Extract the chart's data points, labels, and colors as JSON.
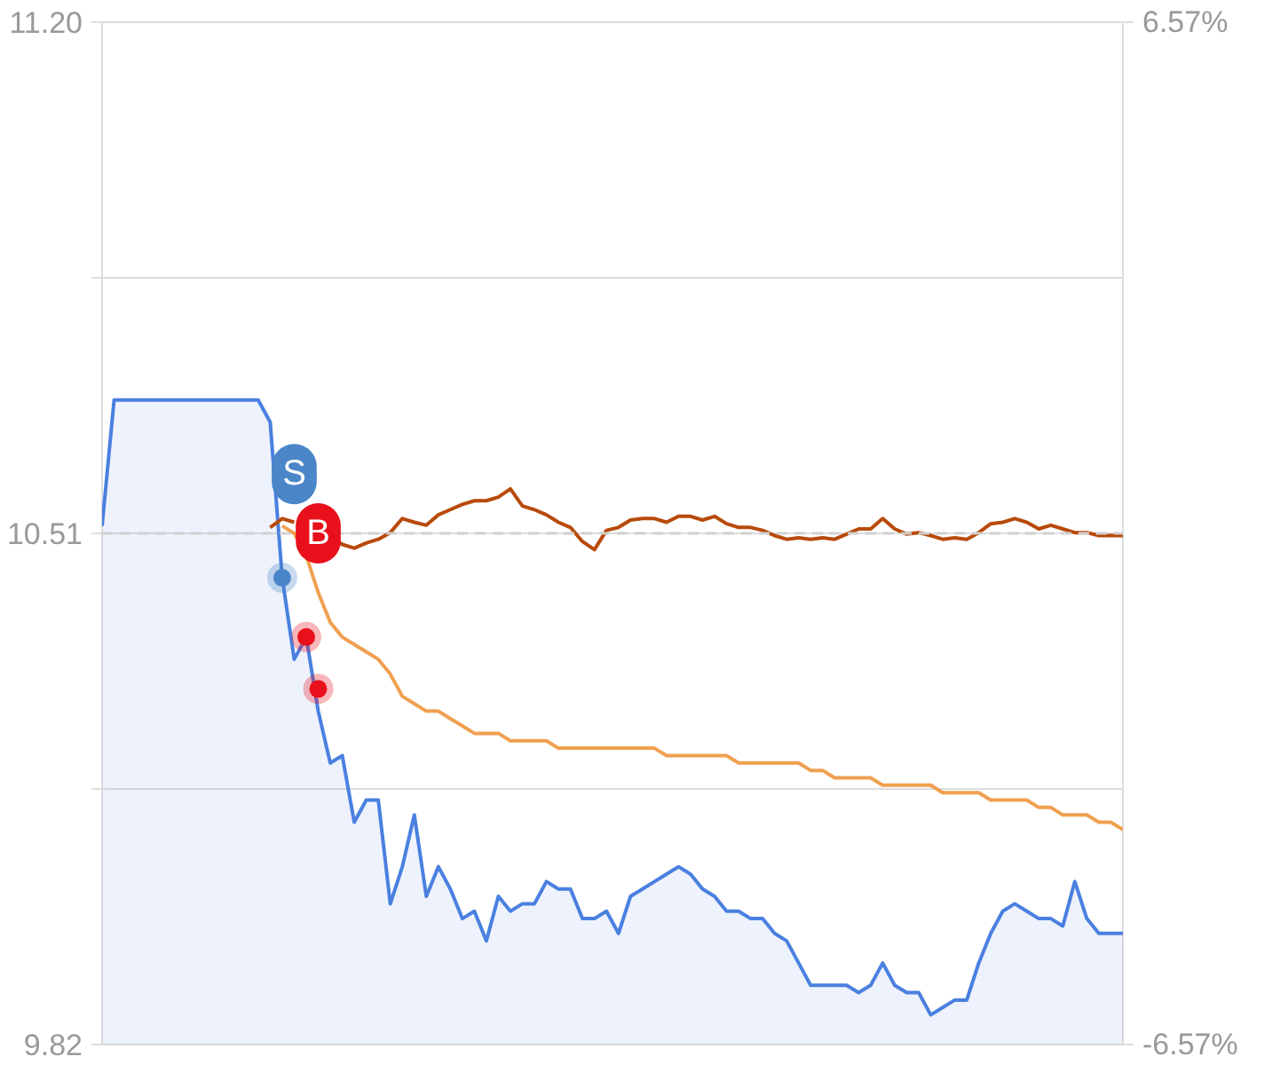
{
  "chart_data": {
    "type": "line",
    "ylim": [
      9.82,
      11.2
    ],
    "y2lim": [
      -6.57,
      6.57
    ],
    "categories": [
      null,
      null,
      null,
      null,
      null,
      null,
      null,
      null,
      null,
      null,
      null,
      null,
      null,
      null,
      null,
      null,
      null,
      null,
      null,
      null,
      null,
      null,
      null,
      null,
      null,
      null,
      null,
      null,
      null,
      null,
      null,
      null,
      null,
      null,
      null,
      null,
      null,
      null,
      null,
      null,
      null,
      null,
      null,
      null,
      null,
      null,
      null,
      null,
      null,
      null,
      null,
      null,
      null,
      null,
      null,
      null,
      null,
      null,
      null,
      null,
      null,
      null,
      null,
      null,
      null,
      null,
      null,
      null,
      null,
      null,
      null,
      null,
      null,
      null,
      null,
      null,
      null,
      null,
      null,
      null,
      null,
      null,
      null,
      null,
      null,
      null
    ],
    "yticks": [
      {
        "value": 11.2,
        "label": "11.20"
      },
      {
        "value": 10.855,
        "label": null
      },
      {
        "value": 10.51,
        "label": "10.51"
      },
      {
        "value": 10.165,
        "label": null
      },
      {
        "value": 9.82,
        "label": "9.82"
      }
    ],
    "y2ticks": [
      {
        "value": 6.57,
        "label": "6.57%"
      },
      {
        "value": -6.57,
        "label": "-6.57%"
      }
    ],
    "tick_labels": "y",
    "grid": "y",
    "ref_lines": [
      {
        "axis": "y",
        "value": 10.51,
        "label": null,
        "color": "#d0d0d0",
        "line_style": "dashed"
      }
    ],
    "annotations": [
      {
        "text": "S",
        "y": 10.59
      },
      {
        "text": "B",
        "y": 10.51
      }
    ],
    "series": [
      {
        "type": "area",
        "color": "#4a80e0",
        "values": [
          10.52,
          10.69,
          10.69,
          10.69,
          10.69,
          10.69,
          10.69,
          10.69,
          10.69,
          10.69,
          10.69,
          10.69,
          10.69,
          10.69,
          10.66,
          10.45,
          10.34,
          10.37,
          10.27,
          10.2,
          10.21,
          10.12,
          10.15,
          10.15,
          10.01,
          10.06,
          10.13,
          10.02,
          10.06,
          10.03,
          9.99,
          10.0,
          9.96,
          10.02,
          10.0,
          10.01,
          10.01,
          10.04,
          10.03,
          10.03,
          9.99,
          9.99,
          10.0,
          9.97,
          10.02,
          10.03,
          10.04,
          10.05,
          10.06,
          10.05,
          10.03,
          10.02,
          10.0,
          10.0,
          9.99,
          9.99,
          9.97,
          9.96,
          9.93,
          9.9,
          9.9,
          9.9,
          9.9,
          9.89,
          9.9,
          9.93,
          9.9,
          9.89,
          9.89,
          9.86,
          9.87,
          9.88,
          9.88,
          9.93,
          9.97,
          10.0,
          10.01,
          10.0,
          9.99,
          9.99,
          9.98,
          10.04,
          9.99,
          9.97,
          9.97,
          9.97
        ]
      },
      {
        "color": "#b84a0a",
        "values": [
          null,
          null,
          null,
          null,
          null,
          null,
          null,
          null,
          null,
          null,
          null,
          null,
          null,
          null,
          10.518,
          10.53,
          10.525,
          null,
          10.507,
          10.507,
          10.495,
          10.49,
          10.497,
          10.502,
          10.511,
          10.53,
          10.525,
          10.521,
          10.535,
          10.542,
          10.549,
          10.554,
          10.554,
          10.559,
          10.57,
          10.547,
          10.542,
          10.535,
          10.525,
          10.518,
          10.499,
          10.488,
          10.514,
          10.518,
          10.528,
          10.53,
          10.53,
          10.525,
          10.533,
          10.533,
          10.528,
          10.533,
          10.523,
          10.518,
          10.518,
          10.514,
          10.507,
          10.502,
          10.504,
          10.502,
          10.504,
          10.502,
          10.509,
          10.516,
          10.516,
          10.53,
          10.516,
          10.509,
          10.511,
          10.507,
          10.502,
          10.504,
          10.502,
          10.511,
          10.523,
          10.525,
          10.53,
          10.525,
          10.516,
          10.521,
          10.516,
          10.511,
          10.511,
          10.507,
          10.507,
          10.507
        ]
      },
      {
        "color": "#f0a050",
        "values": [
          null,
          null,
          null,
          null,
          null,
          null,
          null,
          null,
          null,
          null,
          null,
          null,
          null,
          null,
          null,
          10.52,
          10.51,
          10.48,
          10.43,
          10.39,
          10.37,
          10.36,
          10.35,
          10.34,
          10.32,
          10.29,
          10.28,
          10.27,
          10.27,
          10.26,
          10.25,
          10.24,
          10.24,
          10.24,
          10.23,
          10.23,
          10.23,
          10.23,
          10.22,
          10.22,
          10.22,
          10.22,
          10.22,
          10.22,
          10.22,
          10.22,
          10.22,
          10.21,
          10.21,
          10.21,
          10.21,
          10.21,
          10.21,
          10.2,
          10.2,
          10.2,
          10.2,
          10.2,
          10.2,
          10.19,
          10.19,
          10.18,
          10.18,
          10.18,
          10.18,
          10.17,
          10.17,
          10.17,
          10.17,
          10.17,
          10.16,
          10.16,
          10.16,
          10.16,
          10.15,
          10.15,
          10.15,
          10.15,
          10.14,
          10.14,
          10.13,
          10.13,
          10.13,
          10.12,
          10.12,
          10.11
        ]
      },
      {
        "type": "scatter",
        "color": "#4a86c8",
        "marker": "circle",
        "values": [
          null,
          null,
          null,
          null,
          null,
          null,
          null,
          null,
          null,
          null,
          null,
          null,
          null,
          null,
          null,
          10.45,
          null,
          null,
          null,
          null,
          null,
          null,
          null,
          null,
          null,
          null,
          null,
          null,
          null,
          null,
          null,
          null,
          null,
          null,
          null,
          null,
          null,
          null,
          null,
          null,
          null,
          null,
          null,
          null,
          null,
          null,
          null,
          null,
          null,
          null,
          null,
          null,
          null,
          null,
          null,
          null,
          null,
          null,
          null,
          null,
          null,
          null,
          null,
          null,
          null,
          null,
          null,
          null,
          null,
          null,
          null,
          null,
          null,
          null,
          null,
          null,
          null,
          null,
          null,
          null,
          null,
          null,
          null,
          null,
          null,
          null
        ]
      },
      {
        "type": "scatter",
        "color": "#e8101a",
        "marker": "circle",
        "values": [
          null,
          null,
          null,
          null,
          null,
          null,
          null,
          null,
          null,
          null,
          null,
          null,
          null,
          null,
          null,
          null,
          null,
          10.37,
          10.3,
          null,
          null,
          null,
          null,
          null,
          null,
          null,
          null,
          null,
          null,
          null,
          null,
          null,
          null,
          null,
          null,
          null,
          null,
          null,
          null,
          null,
          null,
          null,
          null,
          null,
          null,
          null,
          null,
          null,
          null,
          null,
          null,
          null,
          null,
          null,
          null,
          null,
          null,
          null,
          null,
          null,
          null,
          null,
          null,
          null,
          null,
          null,
          null,
          null,
          null,
          null,
          null,
          null,
          null,
          null,
          null,
          null,
          null,
          null,
          null,
          null,
          null,
          null,
          null,
          null,
          null,
          null
        ]
      }
    ]
  }
}
